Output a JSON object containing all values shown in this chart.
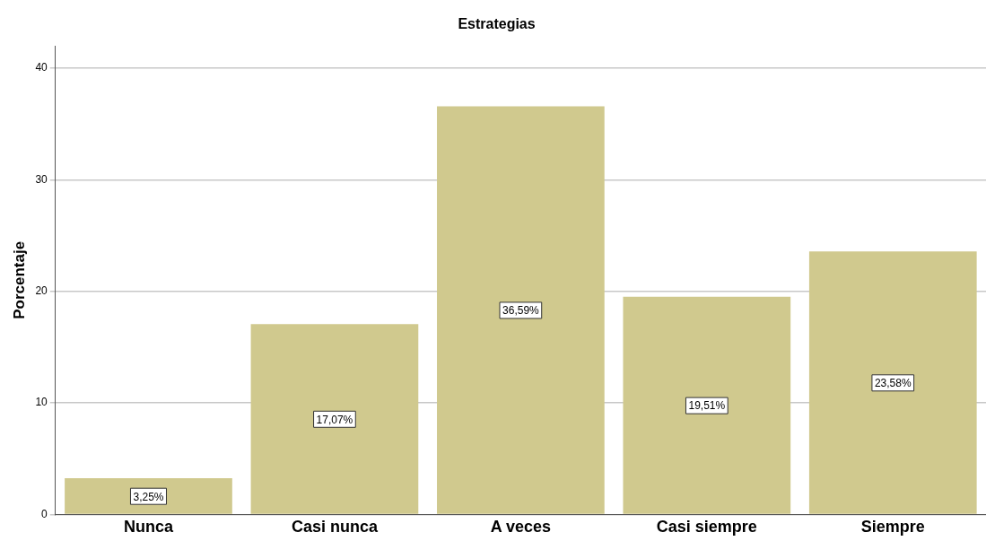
{
  "chart_data": {
    "type": "bar",
    "title": "Estrategias",
    "ylabel": "Porcentaje",
    "categories": [
      "Nunca",
      "Casi nunca",
      "A veces",
      "Casi siempre",
      "Siempre"
    ],
    "values": [
      3.25,
      17.07,
      36.59,
      19.51,
      23.58
    ],
    "value_labels": [
      "3,25%",
      "17,07%",
      "36,59%",
      "19,51%",
      "23,58%"
    ],
    "color": "#d0c98e",
    "ylim": [
      0,
      42
    ],
    "yticks": [
      0,
      10,
      20,
      30,
      40
    ],
    "grid": "y",
    "legend": false
  }
}
